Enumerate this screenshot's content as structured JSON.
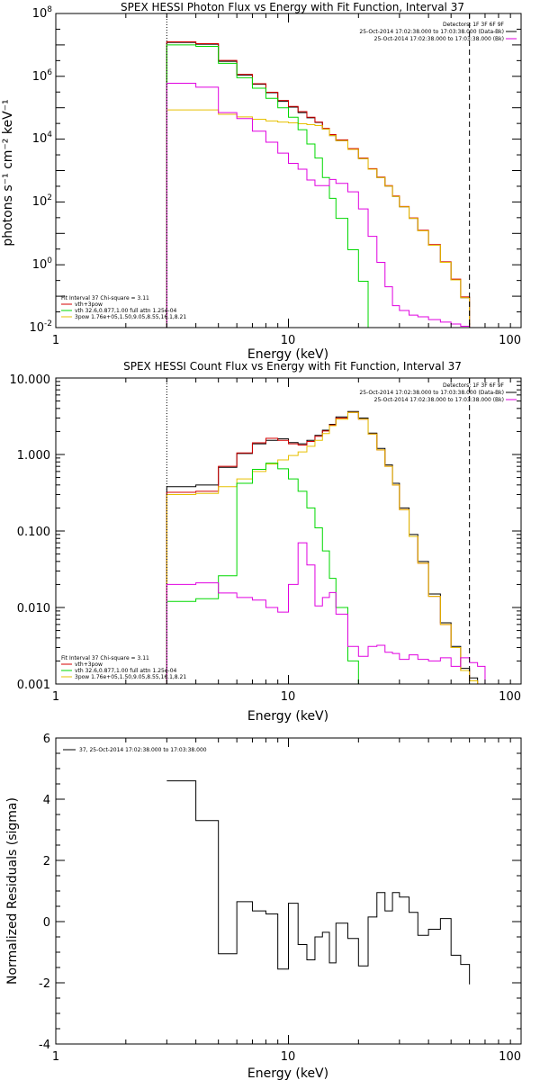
{
  "colors": {
    "data": "#000000",
    "total": "#d40000",
    "thermal": "#00d800",
    "powerlaw": "#e6c000",
    "background": "#e000e0"
  },
  "panels": [
    {
      "id": "photon",
      "title": "SPEX HESSI Photon Flux vs Energy with Fit Function, Interval 37",
      "xlabel": "Energy (keV)",
      "ylabel": "photons s⁻¹ cm⁻² keV⁻¹",
      "xlim": [
        1,
        100
      ],
      "ylim": [
        0.01,
        100000000
      ],
      "xticks": [
        "1",
        "10",
        "100"
      ],
      "yticks": [
        {
          "base": "10",
          "exp": "-2"
        },
        {
          "base": "10",
          "exp": "0"
        },
        {
          "base": "10",
          "exp": "2"
        },
        {
          "base": "10",
          "exp": "4"
        },
        {
          "base": "10",
          "exp": "6"
        },
        {
          "base": "10",
          "exp": "8"
        }
      ],
      "legend_top": {
        "line1": "Detectors: 1F 3F 6F 9F",
        "line2": "25-Oct-2014 17:02:38.000 to 17:03:38.000 (Data-Bk)",
        "line3": "25-Oct-2014 17:02:38.000 to 17:03:38.000 (Bk)"
      },
      "legend_bottom": {
        "header": "Fit Interval 37   Chi-square = 3.11",
        "line1": "vth+3pow",
        "line2": "vth 32.6,0.877,1.00  full attn 1.25e-04",
        "line3": "3pow 1.76e+05,1.50,9.05,8.55,16.1,8.21"
      }
    },
    {
      "id": "count",
      "title": "SPEX HESSI Count Flux vs Energy with Fit Function, Interval 37",
      "xlabel": "Energy (keV)",
      "xlim": [
        1,
        100
      ],
      "ylim": [
        0.001,
        10
      ],
      "xticks": [
        "1",
        "10",
        "100"
      ],
      "yticks": [
        "0.001",
        "0.010",
        "0.100",
        "1.000",
        "10.000"
      ],
      "legend_top": {
        "line1": "Detectors: 1F 3F 6F 9F",
        "line2": "25-Oct-2014 17:02:38.000 to 17:03:38.000 (Data-Bk)",
        "line3": "25-Oct-2014 17:02:38.000 to 17:03:38.000 (Bk)"
      },
      "legend_bottom": {
        "header": "Fit Interval 37   Chi-square = 3.11",
        "line1": "vth+3pow",
        "line2": "vth 32.6,0.877,1.00  full attn 1.25e-04",
        "line3": "3pow 1.76e+05,1.50,9.05,8.55,16.1,8.21"
      }
    },
    {
      "id": "resid",
      "xlabel": "Energy (keV)",
      "ylabel": "Normalized Residuals (sigma)",
      "xlim": [
        1,
        100
      ],
      "ylim": [
        -4,
        6
      ],
      "xticks": [
        "1",
        "10",
        "100"
      ],
      "yticks": [
        "-4",
        "-2",
        "0",
        "2",
        "4",
        "6"
      ],
      "legend": "37, 25-Oct-2014 17:02:38.000 to 17:03:38.000"
    }
  ],
  "chart_data": [
    {
      "type": "line",
      "scale": "log-log",
      "title": "SPEX HESSI Photon Flux vs Energy with Fit Function, Interval 37",
      "xlabel": "Energy (keV)",
      "ylabel": "photons s-1 cm-2 keV-1",
      "xlim": [
        1,
        100
      ],
      "ylim": [
        0.01,
        100000000
      ],
      "markers": {
        "dotted_x": 3,
        "dashed_x": 60
      },
      "edges": [
        3,
        4,
        5,
        6,
        7,
        8,
        9,
        10,
        11,
        12,
        13,
        14,
        15,
        16,
        18,
        20,
        22,
        24,
        26,
        28,
        30,
        33,
        36,
        40,
        45,
        50,
        55,
        60
      ],
      "series": [
        {
          "key": "data",
          "name": "Data-Bk",
          "values": [
            12000000,
            10500000,
            3000000,
            1100000,
            560000,
            300000,
            160000,
            105000,
            70000,
            48000,
            34000,
            21000,
            13000,
            9000,
            4700,
            2400,
            1100,
            600,
            320,
            150,
            70,
            30,
            12,
            4.2,
            1.2,
            0.33,
            0.09
          ]
        },
        {
          "key": "total",
          "name": "vth+3pow",
          "values": [
            12500000,
            11000000,
            3200000,
            1150000,
            580000,
            310000,
            170000,
            110000,
            75000,
            50000,
            35000,
            22000,
            14000,
            9500,
            5000,
            2500,
            1150,
            620,
            330,
            155,
            72,
            31,
            12.5,
            4.4,
            1.25,
            0.35,
            0.095
          ]
        },
        {
          "key": "thermal",
          "name": "vth",
          "values": [
            10000000,
            9000000,
            2600000,
            900000,
            420000,
            200000,
            100000,
            50000,
            20000,
            7000,
            2500,
            600,
            130,
            30,
            3,
            0.3,
            0.006
          ]
        },
        {
          "key": "powerlaw",
          "name": "3pow",
          "values": [
            85000,
            85000,
            62000,
            51000,
            43000,
            38000,
            35000,
            33000,
            31000,
            29000,
            27000,
            21000,
            13000,
            9000,
            4700,
            2400,
            1100,
            600,
            320,
            150,
            70,
            30,
            12,
            4.2,
            1.2,
            0.33,
            0.09
          ]
        },
        {
          "key": "background",
          "name": "Bk",
          "values": [
            600000,
            450000,
            70000,
            45000,
            18000,
            8000,
            3600,
            1700,
            1100,
            500,
            330,
            330,
            520,
            390,
            210,
            60,
            8,
            1.2,
            0.2,
            0.05,
            0.035,
            0.025,
            0.022,
            0.018,
            0.015,
            0.013,
            0.011
          ]
        }
      ]
    },
    {
      "type": "line",
      "scale": "log-log",
      "title": "SPEX HESSI Count Flux vs Energy with Fit Function, Interval 37",
      "xlabel": "Energy (keV)",
      "xlim": [
        1,
        100
      ],
      "ylim": [
        0.001,
        10
      ],
      "markers": {
        "dotted_x": 3,
        "dashed_x": 60
      },
      "edges": [
        3,
        4,
        5,
        6,
        7,
        8,
        9,
        10,
        11,
        12,
        13,
        14,
        15,
        16,
        18,
        20,
        22,
        24,
        26,
        28,
        30,
        33,
        36,
        40,
        45,
        50,
        55,
        60,
        65,
        70
      ],
      "series": [
        {
          "key": "data",
          "name": "Data-Bk",
          "values": [
            0.38,
            0.4,
            0.68,
            1.03,
            1.38,
            1.53,
            1.6,
            1.43,
            1.38,
            1.53,
            1.78,
            2.08,
            2.48,
            3.1,
            3.65,
            3.0,
            1.9,
            1.2,
            0.73,
            0.42,
            0.2,
            0.09,
            0.04,
            0.015,
            0.0063,
            0.0031,
            0.0016,
            0.0012,
            0.0009
          ]
        },
        {
          "key": "total",
          "name": "vth+3pow",
          "values": [
            0.32,
            0.33,
            0.7,
            1.05,
            1.42,
            1.63,
            1.53,
            1.38,
            1.33,
            1.48,
            1.73,
            2.03,
            2.43,
            3.0,
            3.55,
            2.9,
            1.85,
            1.15,
            0.7,
            0.4,
            0.19,
            0.085,
            0.038,
            0.014,
            0.006,
            0.003,
            0.0015,
            0.0011,
            0.0009
          ]
        },
        {
          "key": "thermal",
          "name": "vth",
          "values": [
            0.012,
            0.013,
            0.026,
            0.42,
            0.64,
            0.77,
            0.65,
            0.48,
            0.33,
            0.2,
            0.11,
            0.055,
            0.024,
            0.01,
            0.002,
            0.0009
          ]
        },
        {
          "key": "powerlaw",
          "name": "3pow",
          "values": [
            0.3,
            0.31,
            0.38,
            0.48,
            0.6,
            0.75,
            0.85,
            0.97,
            1.08,
            1.28,
            1.53,
            1.88,
            2.38,
            2.9,
            3.55,
            2.9,
            1.85,
            1.15,
            0.7,
            0.4,
            0.19,
            0.085,
            0.038,
            0.014,
            0.006,
            0.003,
            0.0015,
            0.0011,
            0.0009
          ]
        },
        {
          "key": "background",
          "name": "Bk",
          "values": [
            0.02,
            0.021,
            0.0155,
            0.0135,
            0.0125,
            0.01,
            0.0087,
            0.02,
            0.07,
            0.036,
            0.0105,
            0.0135,
            0.0157,
            0.0082,
            0.0031,
            0.0023,
            0.0031,
            0.0032,
            0.0026,
            0.0025,
            0.0021,
            0.0024,
            0.0021,
            0.002,
            0.0022,
            0.0017,
            0.0022,
            0.0019,
            0.0017
          ]
        }
      ]
    },
    {
      "type": "line",
      "scale": "log-x",
      "xlabel": "Energy (keV)",
      "ylabel": "Normalized Residuals (sigma)",
      "xlim": [
        1,
        100
      ],
      "ylim": [
        -4,
        6
      ],
      "edges": [
        3,
        4,
        5,
        6,
        7,
        8,
        9,
        10,
        11,
        12,
        13,
        14,
        15,
        16,
        18,
        20,
        22,
        24,
        26,
        28,
        30,
        33,
        36,
        40,
        45,
        50,
        55,
        60
      ],
      "series": [
        {
          "key": "data",
          "name": "37, 25-Oct-2014 17:02:38.000 to 17:03:38.000",
          "values": [
            4.6,
            3.3,
            -1.05,
            0.65,
            0.35,
            0.25,
            -1.55,
            0.6,
            -0.75,
            -1.25,
            -0.5,
            -0.35,
            -1.35,
            -0.05,
            -0.55,
            -1.45,
            0.15,
            0.95,
            0.35,
            0.95,
            0.8,
            0.3,
            -0.45,
            -0.25,
            0.1,
            -1.1,
            -1.4,
            -2.05
          ]
        }
      ]
    }
  ]
}
